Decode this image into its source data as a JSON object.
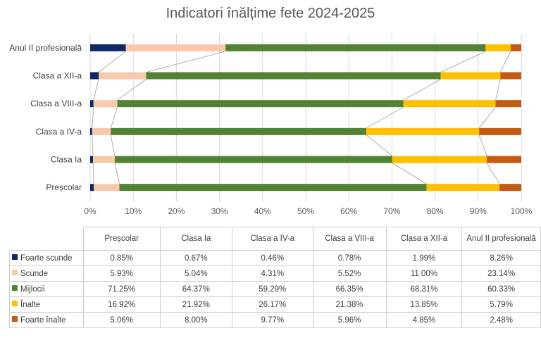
{
  "chart_data": {
    "type": "bar",
    "stacked": true,
    "percent": true,
    "orientation": "horizontal",
    "title": "Indicatori înălțime fete 2024-2025",
    "categories": [
      "Preșcolar",
      "Clasa Ia",
      "Clasa a IV-a",
      "Clasa a VIII-a",
      "Clasa a XII-a",
      "Anul II profesională"
    ],
    "x_ticks": [
      "0%",
      "10%",
      "20%",
      "30%",
      "40%",
      "50%",
      "60%",
      "70%",
      "80%",
      "90%",
      "100%"
    ],
    "xlim": [
      0,
      100
    ],
    "grid": true,
    "legend": "table",
    "series": [
      {
        "name": "Foarte scunde",
        "color": "#0d2a66",
        "values": [
          0.85,
          0.67,
          0.46,
          0.78,
          1.99,
          8.26
        ],
        "labels": [
          "0.85%",
          "0.67%",
          "0.46%",
          "0.78%",
          "1.99%",
          "8.26%"
        ]
      },
      {
        "name": "Scunde",
        "color": "#f8c9ad",
        "values": [
          5.93,
          5.04,
          4.31,
          5.52,
          11.0,
          23.14
        ],
        "labels": [
          "5.93%",
          "5.04%",
          "4.31%",
          "5.52%",
          "11.00%",
          "23.14%"
        ]
      },
      {
        "name": "Mijlocii",
        "color": "#548235",
        "values": [
          71.25,
          64.37,
          59.29,
          66.35,
          68.31,
          60.33
        ],
        "labels": [
          "71.25%",
          "64.37%",
          "59.29%",
          "66.35%",
          "68.31%",
          "60.33%"
        ]
      },
      {
        "name": "Înalte",
        "color": "#ffc000",
        "values": [
          16.92,
          21.92,
          26.17,
          21.38,
          13.85,
          5.79
        ],
        "labels": [
          "16.92%",
          "21.92%",
          "26.17%",
          "21.38%",
          "13.85%",
          "5.79%"
        ]
      },
      {
        "name": "Foarte înalte",
        "color": "#c55a11",
        "values": [
          5.06,
          8.0,
          9.77,
          5.96,
          4.85,
          2.48
        ],
        "labels": [
          "5.06%",
          "8.00%",
          "9.77%",
          "5.96%",
          "4.85%",
          "2.48%"
        ]
      }
    ]
  }
}
